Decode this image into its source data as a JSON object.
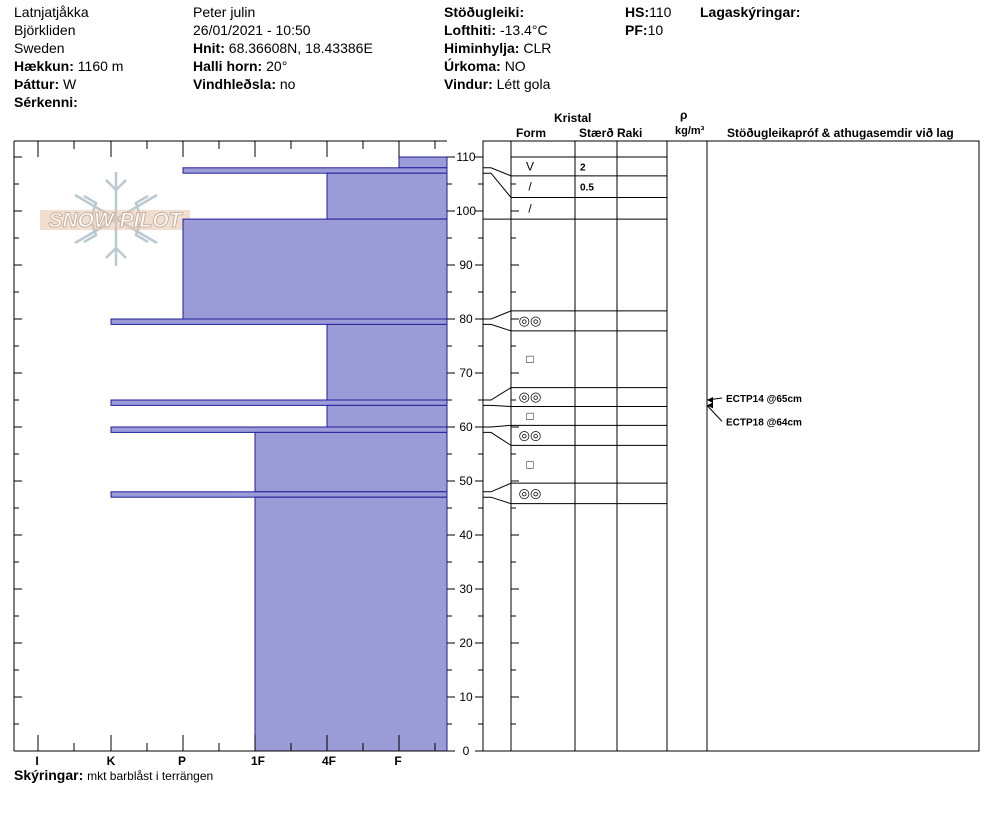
{
  "header": {
    "location": "Latnjatjåkka",
    "region": "Björkliden",
    "country": "Sweden",
    "elevation_label": "Hækkun:",
    "elevation_value": "1160 m",
    "aspect_label": "Þáttur:",
    "aspect_value": "W",
    "features_label": "Sérkenni:",
    "observer": "Peter julin",
    "datetime": "26/01/2021 - 10:50",
    "coords_label": "Hnit:",
    "coords_value": "68.36608N, 18.43386E",
    "slope_label": "Halli horn:",
    "slope_value": "20°",
    "wind_loading_label": "Vindhleðsla:",
    "wind_loading_value": "no",
    "stability_label": "Stöðugleiki:",
    "air_temp_label": "Lofthiti:",
    "air_temp_value": "-13.4°C",
    "sky_label": "Himinhylja:",
    "sky_value": "CLR",
    "precip_label": "Úrkoma:",
    "precip_value": "NO",
    "wind_label": "Vindur:",
    "wind_value": "Létt gola",
    "hs_label": "HS:",
    "hs_value": "110",
    "pf_label": "PF:",
    "pf_value": "10",
    "layer_notes_label": "Lagaskýringar:"
  },
  "logo_text": "SNOW PILOT",
  "columns": {
    "crystal": "Kristal",
    "form": "Form",
    "size": "Stærð",
    "moisture": "Raki",
    "rho": "ρ",
    "density_unit": "kg/m³",
    "stability_notes": "Stöðugleikapróf & athugasemdir við lag"
  },
  "footer": {
    "notes_label": "Skýringar:",
    "notes_value": "mkt barblåst i terrängen"
  },
  "colors": {
    "hardness_fill": "#9b9bd8",
    "hardness_stroke": "#1f1f99"
  },
  "chart_data": {
    "type": "bar",
    "orientation": "horizontal",
    "title": "",
    "ylabel": "",
    "ylim": [
      0,
      110
    ],
    "y_ticks": [
      0,
      10,
      20,
      30,
      40,
      50,
      60,
      70,
      80,
      90,
      100,
      110
    ],
    "hardness_categories": [
      "I",
      "K",
      "P",
      "1F",
      "4F",
      "F"
    ],
    "hardness_values": {
      "I": 1,
      "K": 2,
      "P": 3,
      "1F": 4,
      "4F": 5,
      "F": 6
    },
    "layers": [
      {
        "top": 110,
        "bottom": 108,
        "hardness": "F"
      },
      {
        "top": 108,
        "bottom": 107,
        "hardness": "P"
      },
      {
        "top": 107,
        "bottom": 98.5,
        "hardness": "4F"
      },
      {
        "top": 98.5,
        "bottom": 80,
        "hardness": "P"
      },
      {
        "top": 80,
        "bottom": 79,
        "hardness": "K"
      },
      {
        "top": 79,
        "bottom": 65,
        "hardness": "4F"
      },
      {
        "top": 65,
        "bottom": 64,
        "hardness": "K"
      },
      {
        "top": 64,
        "bottom": 60,
        "hardness": "4F"
      },
      {
        "top": 60,
        "bottom": 59,
        "hardness": "K"
      },
      {
        "top": 59,
        "bottom": 48,
        "hardness": "1F"
      },
      {
        "top": 48,
        "bottom": 47,
        "hardness": "K"
      },
      {
        "top": 47,
        "bottom": 0,
        "hardness": "1F"
      }
    ],
    "profile_layers": [
      {
        "top": 110,
        "bottom": 106.5,
        "form": "V",
        "size": "2"
      },
      {
        "top": 106.5,
        "bottom": 102.5,
        "form": "/",
        "size": "0.5"
      },
      {
        "top": 102.5,
        "bottom": 98.5,
        "form": "/",
        "size": ""
      },
      {
        "top": 81.5,
        "bottom": 77.8,
        "form": "◎◎",
        "size": ""
      },
      {
        "top": 77.8,
        "bottom": 67.3,
        "form": "□",
        "size": ""
      },
      {
        "top": 67.3,
        "bottom": 63.8,
        "form": "◎◎",
        "size": ""
      },
      {
        "top": 63.8,
        "bottom": 60.3,
        "form": "□",
        "size": ""
      },
      {
        "top": 60.3,
        "bottom": 56.6,
        "form": "◎◎",
        "size": ""
      },
      {
        "top": 56.6,
        "bottom": 49.6,
        "form": "□",
        "size": ""
      },
      {
        "top": 49.6,
        "bottom": 45.8,
        "form": "◎◎",
        "size": ""
      }
    ],
    "tests": [
      {
        "height": 65,
        "label": "ECTP14 @65cm"
      },
      {
        "height": 64,
        "label": "ECTP18 @64cm"
      }
    ]
  }
}
